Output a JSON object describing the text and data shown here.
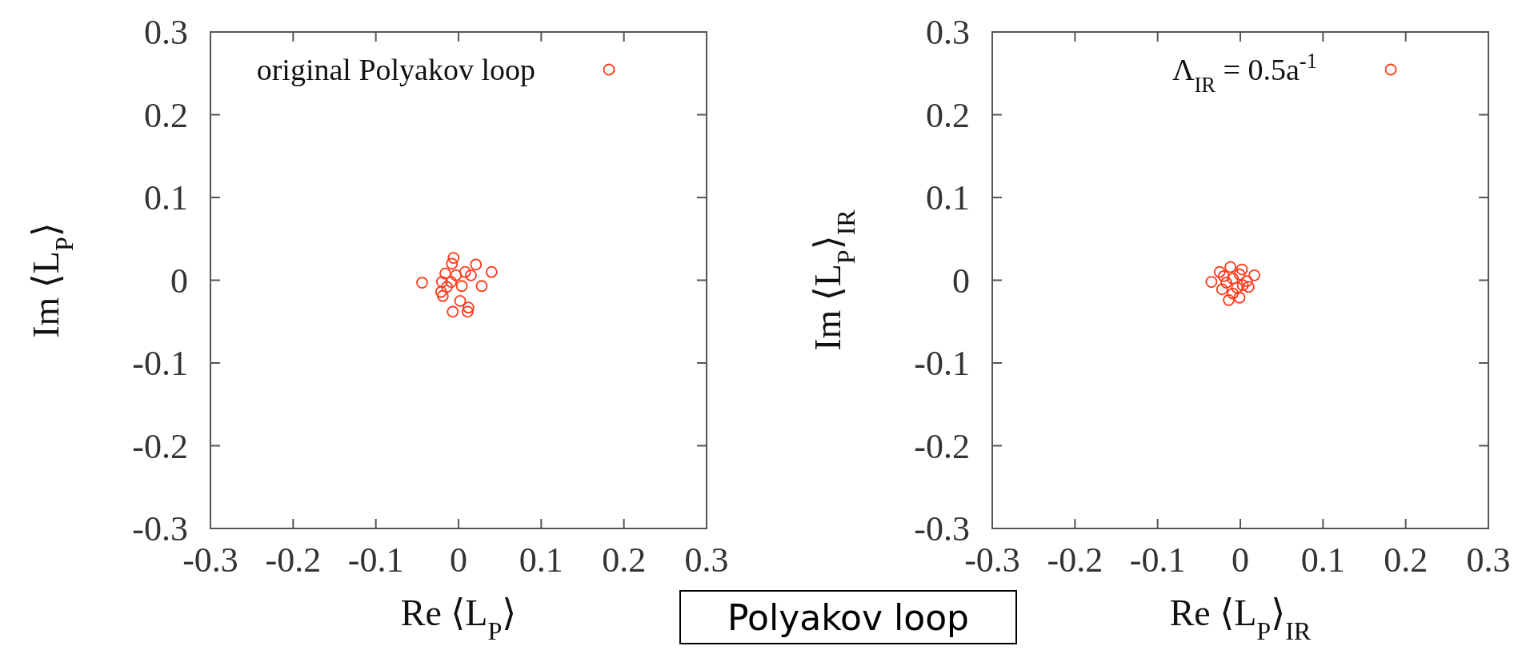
{
  "chart_data": [
    {
      "type": "scatter",
      "xlabel": "Re ⟨L$_{P}$⟩",
      "ylabel": "Im ⟨L$_{P}$⟩",
      "xlim": [
        -0.3,
        0.3
      ],
      "ylim": [
        -0.3,
        0.3
      ],
      "xticks": [
        -0.3,
        -0.2,
        -0.1,
        0,
        0.1,
        0.2,
        0.3
      ],
      "yticks": [
        -0.3,
        -0.2,
        -0.1,
        0,
        0.1,
        0.2,
        0.3
      ],
      "marker": "circle",
      "legend": "top right",
      "series": [
        {
          "name": "original Polyakov loop",
          "color": "#ff3a1a",
          "x": [
            -0.044,
            -0.006,
            -0.008,
            0.021,
            0.04,
            0.028,
            0.004,
            0.002,
            -0.007,
            0.011,
            0.012,
            -0.019,
            -0.021,
            -0.016,
            -0.02,
            -0.003,
            0.008,
            0.015,
            -0.009,
            -0.014
          ],
          "values": [
            -0.003,
            0.027,
            0.02,
            0.019,
            0.01,
            -0.007,
            -0.007,
            -0.025,
            -0.038,
            -0.038,
            -0.033,
            -0.019,
            -0.014,
            0.008,
            -0.002,
            0.006,
            0.01,
            0.006,
            -0.002,
            -0.008
          ]
        }
      ]
    },
    {
      "type": "scatter",
      "xlabel": "Re ⟨L$_{P}$⟩$_{IR}$",
      "ylabel": "Im ⟨L$_{P}$⟩$_{IR}$",
      "xlim": [
        -0.3,
        0.3
      ],
      "ylim": [
        -0.3,
        0.3
      ],
      "xticks": [
        -0.3,
        -0.2,
        -0.1,
        0,
        0.1,
        0.2,
        0.3
      ],
      "yticks": [
        -0.3,
        -0.2,
        -0.1,
        0,
        0.1,
        0.2,
        0.3
      ],
      "marker": "circle",
      "legend": "top right",
      "series": [
        {
          "name": "Λ$_{IR}$ = 0.5a$^{-1}$",
          "color": "#ff3a1a",
          "x": [
            -0.035,
            -0.012,
            0.002,
            0.017,
            0.008,
            -0.02,
            -0.022,
            -0.001,
            -0.014,
            -0.004,
            -0.009,
            0.003,
            -0.017,
            -0.001,
            0.01,
            -0.009,
            -0.025
          ],
          "values": [
            -0.002,
            0.016,
            0.013,
            0.006,
            -0.001,
            0.005,
            -0.011,
            -0.021,
            -0.024,
            -0.009,
            0.002,
            -0.006,
            -0.003,
            0.007,
            -0.008,
            -0.016,
            0.01
          ]
        }
      ]
    },
    {
      "type": "other",
      "title": "Polyakov loop"
    }
  ]
}
